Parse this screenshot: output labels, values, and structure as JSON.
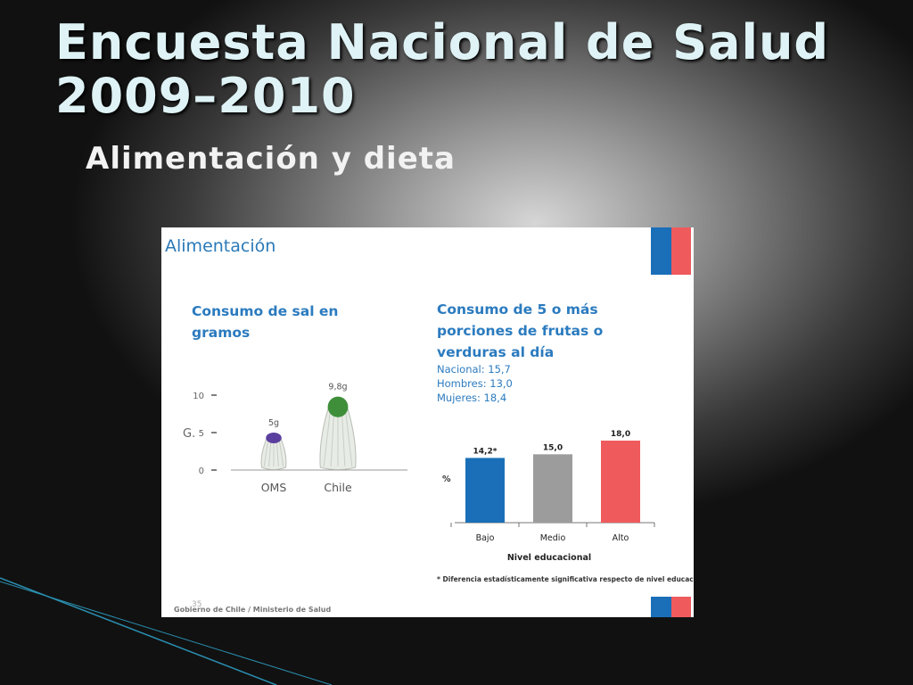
{
  "slide": {
    "title": "Encuesta Nacional de Salud\n2009–2010",
    "subtitle": "Alimentación y dieta"
  },
  "panel": {
    "heading": "Alimentación",
    "footer": "Gobierno de Chile / Ministerio de Salud",
    "page_number": "35",
    "flag_colors": [
      "#1a6fb8",
      "#ef5a5d"
    ]
  },
  "chart_data": [
    {
      "type": "bar",
      "style": "salt-shaker pictogram",
      "title": "Consumo de sal en gramos",
      "ylabel": "G.",
      "ylim": [
        0,
        10
      ],
      "yticks": [
        "0",
        "5",
        "10"
      ],
      "categories": [
        "OMS",
        "Chile"
      ],
      "values": [
        5,
        9.8
      ],
      "data_labels": [
        "5g",
        "9,8g"
      ],
      "colors": {
        "OMS": "#5b3f9e",
        "Chile": "#3f8f3a"
      }
    },
    {
      "type": "bar",
      "title": "Consumo de 5 o más porciones de frutas o verduras al día",
      "stats": [
        "Nacional: 15,7",
        "Hombres: 13,0",
        "Mujeres: 18,4"
      ],
      "xlabel": "Nivel educacional",
      "ylabel": "%",
      "categories": [
        "Bajo",
        "Medio",
        "Alto"
      ],
      "values": [
        14.2,
        15.0,
        18.0
      ],
      "data_labels": [
        "14,2*",
        "15,0",
        "18,0"
      ],
      "colors": [
        "#1a6fb8",
        "#9c9c9c",
        "#ef5a5d"
      ],
      "note": "* Diferencia estadísticamente significativa respecto de nivel educacional alto"
    }
  ]
}
